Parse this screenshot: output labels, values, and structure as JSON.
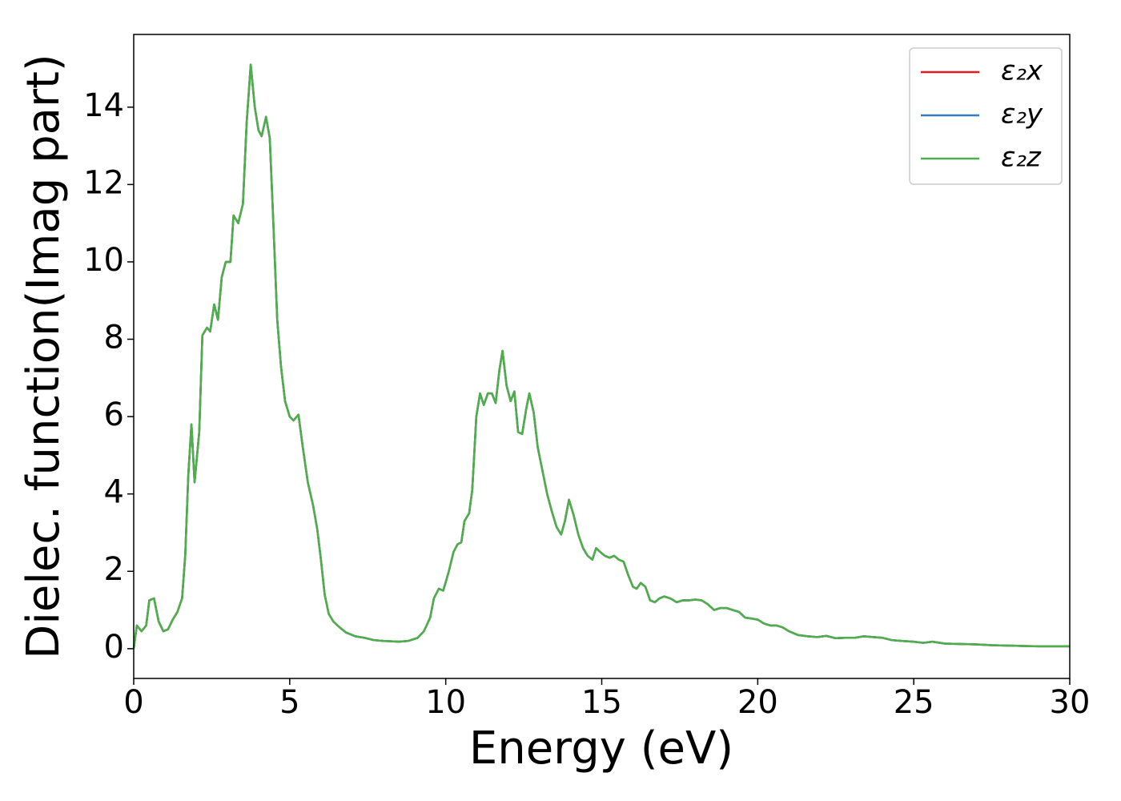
{
  "chart_data": {
    "type": "line",
    "xlabel": "Energy (eV)",
    "ylabel": "Dielec. function(Imag part)",
    "x": [
      0,
      0.1,
      0.25,
      0.4,
      0.5,
      0.65,
      0.8,
      0.95,
      1.1,
      1.25,
      1.4,
      1.55,
      1.65,
      1.75,
      1.85,
      1.95,
      2.1,
      2.2,
      2.35,
      2.45,
      2.58,
      2.7,
      2.82,
      2.95,
      3.1,
      3.2,
      3.35,
      3.5,
      3.62,
      3.75,
      3.88,
      4.0,
      4.1,
      4.24,
      4.36,
      4.46,
      4.6,
      4.72,
      4.85,
      5.0,
      5.12,
      5.28,
      5.42,
      5.58,
      5.75,
      5.88,
      6.0,
      6.12,
      6.25,
      6.4,
      6.6,
      6.8,
      7.1,
      7.4,
      7.7,
      8.0,
      8.5,
      8.8,
      9.1,
      9.3,
      9.5,
      9.62,
      9.78,
      9.92,
      10.1,
      10.25,
      10.38,
      10.5,
      10.6,
      10.75,
      10.85,
      10.98,
      11.1,
      11.22,
      11.35,
      11.48,
      11.6,
      11.72,
      11.82,
      11.95,
      12.08,
      12.2,
      12.32,
      12.45,
      12.58,
      12.68,
      12.82,
      12.95,
      13.1,
      13.25,
      13.4,
      13.55,
      13.7,
      13.82,
      13.95,
      14.1,
      14.25,
      14.4,
      14.55,
      14.7,
      14.82,
      14.95,
      15.1,
      15.25,
      15.4,
      15.55,
      15.7,
      15.85,
      16.0,
      16.12,
      16.25,
      16.4,
      16.55,
      16.7,
      16.85,
      17.0,
      17.2,
      17.4,
      17.6,
      17.8,
      18.0,
      18.2,
      18.4,
      18.6,
      18.8,
      19.0,
      19.2,
      19.4,
      19.6,
      19.8,
      20.0,
      20.2,
      20.4,
      20.6,
      20.8,
      21.0,
      21.3,
      21.6,
      21.9,
      22.2,
      22.5,
      22.8,
      23.1,
      23.4,
      23.7,
      24.0,
      24.3,
      24.6,
      25.0,
      25.3,
      25.6,
      26.0,
      26.5,
      27.0,
      27.5,
      28.0,
      28.5,
      29.0,
      29.5,
      30.0
    ],
    "series": [
      {
        "name": "ε₂x",
        "color": "#e41a1c",
        "values": [
          0,
          0.6,
          0.45,
          0.6,
          1.25,
          1.3,
          0.7,
          0.45,
          0.5,
          0.75,
          0.95,
          1.3,
          2.4,
          4.5,
          5.8,
          4.3,
          5.6,
          8.1,
          8.3,
          8.2,
          8.9,
          8.5,
          9.6,
          10.0,
          10.0,
          11.2,
          11.0,
          11.5,
          13.6,
          15.1,
          14.0,
          13.4,
          13.25,
          13.75,
          13.2,
          11.3,
          8.5,
          7.3,
          6.4,
          6.0,
          5.9,
          6.05,
          5.2,
          4.3,
          3.7,
          3.1,
          2.3,
          1.4,
          0.9,
          0.7,
          0.55,
          0.42,
          0.32,
          0.28,
          0.22,
          0.2,
          0.18,
          0.2,
          0.28,
          0.45,
          0.8,
          1.3,
          1.55,
          1.5,
          2.0,
          2.5,
          2.7,
          2.75,
          3.3,
          3.5,
          4.1,
          6.0,
          6.6,
          6.3,
          6.6,
          6.6,
          6.35,
          7.2,
          7.7,
          6.8,
          6.4,
          6.65,
          5.6,
          5.55,
          6.2,
          6.6,
          6.1,
          5.2,
          4.6,
          4.0,
          3.55,
          3.15,
          2.95,
          3.3,
          3.85,
          3.45,
          2.95,
          2.6,
          2.4,
          2.3,
          2.6,
          2.5,
          2.4,
          2.35,
          2.4,
          2.3,
          2.25,
          1.9,
          1.6,
          1.55,
          1.7,
          1.6,
          1.25,
          1.2,
          1.3,
          1.35,
          1.3,
          1.2,
          1.25,
          1.25,
          1.27,
          1.25,
          1.15,
          1.0,
          1.05,
          1.05,
          1.0,
          0.95,
          0.8,
          0.78,
          0.75,
          0.65,
          0.6,
          0.6,
          0.55,
          0.45,
          0.35,
          0.32,
          0.3,
          0.33,
          0.27,
          0.28,
          0.28,
          0.32,
          0.3,
          0.28,
          0.22,
          0.2,
          0.18,
          0.15,
          0.18,
          0.13,
          0.12,
          0.11,
          0.09,
          0.08,
          0.07,
          0.06,
          0.06,
          0.06
        ]
      },
      {
        "name": "ε₂y",
        "color": "#377eb8",
        "values": [
          0,
          0.6,
          0.45,
          0.6,
          1.25,
          1.3,
          0.7,
          0.45,
          0.5,
          0.75,
          0.95,
          1.3,
          2.4,
          4.5,
          5.8,
          4.3,
          5.6,
          8.1,
          8.3,
          8.2,
          8.9,
          8.5,
          9.6,
          10.0,
          10.0,
          11.2,
          11.0,
          11.5,
          13.6,
          15.1,
          14.0,
          13.4,
          13.25,
          13.75,
          13.2,
          11.3,
          8.5,
          7.3,
          6.4,
          6.0,
          5.9,
          6.05,
          5.2,
          4.3,
          3.7,
          3.1,
          2.3,
          1.4,
          0.9,
          0.7,
          0.55,
          0.42,
          0.32,
          0.28,
          0.22,
          0.2,
          0.18,
          0.2,
          0.28,
          0.45,
          0.8,
          1.3,
          1.55,
          1.5,
          2.0,
          2.5,
          2.7,
          2.75,
          3.3,
          3.5,
          4.1,
          6.0,
          6.6,
          6.3,
          6.6,
          6.6,
          6.35,
          7.2,
          7.7,
          6.8,
          6.4,
          6.65,
          5.6,
          5.55,
          6.2,
          6.6,
          6.1,
          5.2,
          4.6,
          4.0,
          3.55,
          3.15,
          2.95,
          3.3,
          3.85,
          3.45,
          2.95,
          2.6,
          2.4,
          2.3,
          2.6,
          2.5,
          2.4,
          2.35,
          2.4,
          2.3,
          2.25,
          1.9,
          1.6,
          1.55,
          1.7,
          1.6,
          1.25,
          1.2,
          1.3,
          1.35,
          1.3,
          1.2,
          1.25,
          1.25,
          1.27,
          1.25,
          1.15,
          1.0,
          1.05,
          1.05,
          1.0,
          0.95,
          0.8,
          0.78,
          0.75,
          0.65,
          0.6,
          0.6,
          0.55,
          0.45,
          0.35,
          0.32,
          0.3,
          0.33,
          0.27,
          0.28,
          0.28,
          0.32,
          0.3,
          0.28,
          0.22,
          0.2,
          0.18,
          0.15,
          0.18,
          0.13,
          0.12,
          0.11,
          0.09,
          0.08,
          0.07,
          0.06,
          0.06,
          0.06
        ]
      },
      {
        "name": "ε₂z",
        "color": "#4daf4a",
        "values": [
          0,
          0.6,
          0.45,
          0.6,
          1.25,
          1.3,
          0.7,
          0.45,
          0.5,
          0.75,
          0.95,
          1.3,
          2.4,
          4.5,
          5.8,
          4.3,
          5.6,
          8.1,
          8.3,
          8.2,
          8.9,
          8.5,
          9.6,
          10.0,
          10.0,
          11.2,
          11.0,
          11.5,
          13.6,
          15.1,
          14.0,
          13.4,
          13.25,
          13.75,
          13.2,
          11.3,
          8.5,
          7.3,
          6.4,
          6.0,
          5.9,
          6.05,
          5.2,
          4.3,
          3.7,
          3.1,
          2.3,
          1.4,
          0.9,
          0.7,
          0.55,
          0.42,
          0.32,
          0.28,
          0.22,
          0.2,
          0.18,
          0.2,
          0.28,
          0.45,
          0.8,
          1.3,
          1.55,
          1.5,
          2.0,
          2.5,
          2.7,
          2.75,
          3.3,
          3.5,
          4.1,
          6.0,
          6.6,
          6.3,
          6.6,
          6.6,
          6.35,
          7.2,
          7.7,
          6.8,
          6.4,
          6.65,
          5.6,
          5.55,
          6.2,
          6.6,
          6.1,
          5.2,
          4.6,
          4.0,
          3.55,
          3.15,
          2.95,
          3.3,
          3.85,
          3.45,
          2.95,
          2.6,
          2.4,
          2.3,
          2.6,
          2.5,
          2.4,
          2.35,
          2.4,
          2.3,
          2.25,
          1.9,
          1.6,
          1.55,
          1.7,
          1.6,
          1.25,
          1.2,
          1.3,
          1.35,
          1.3,
          1.2,
          1.25,
          1.25,
          1.27,
          1.25,
          1.15,
          1.0,
          1.05,
          1.05,
          1.0,
          0.95,
          0.8,
          0.78,
          0.75,
          0.65,
          0.6,
          0.6,
          0.55,
          0.45,
          0.35,
          0.32,
          0.3,
          0.33,
          0.27,
          0.28,
          0.28,
          0.32,
          0.3,
          0.28,
          0.22,
          0.2,
          0.18,
          0.15,
          0.18,
          0.13,
          0.12,
          0.11,
          0.09,
          0.08,
          0.07,
          0.06,
          0.06,
          0.06
        ]
      }
    ],
    "xlim": [
      0,
      30
    ],
    "xticks": [
      0,
      5,
      10,
      15,
      20,
      25,
      30
    ],
    "ylim": [
      -0.77,
      15.88
    ],
    "yticks": [
      0,
      2,
      4,
      6,
      8,
      10,
      12,
      14
    ],
    "grid": false,
    "legend": "upper right"
  }
}
